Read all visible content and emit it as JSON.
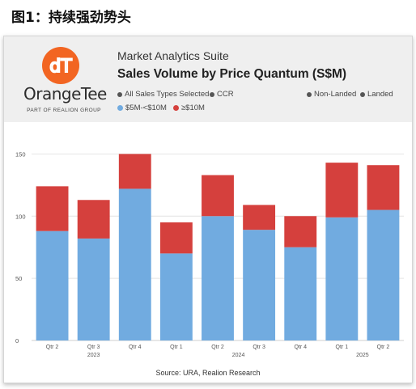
{
  "figure_title": "图1：持续强劲势头",
  "logo": {
    "brand": "OrangeTee",
    "tagline": "PART OF REALION GROUP",
    "mark": "dT"
  },
  "header": {
    "suite": "Market Analytics Suite",
    "title": "Sales Volume by Price Quantum (S$M)"
  },
  "filters": [
    "All Sales Types Selected",
    "CCR",
    "Non-Landed",
    "Landed"
  ],
  "source": "Source: URA, Realion Research",
  "colors": {
    "low_band": "#71abe0",
    "high_band": "#d5403d",
    "logo": "#f26522"
  },
  "chart_data": {
    "type": "bar",
    "stacked": true,
    "categories": [
      "Qtr 2",
      "Qtr 3",
      "Qtr 4",
      "Qtr 1",
      "Qtr 2",
      "Qtr 3",
      "Qtr 4",
      "Qtr 1",
      "Qtr 2"
    ],
    "year_labels": [
      {
        "label": "2023",
        "from": 0,
        "to": 2
      },
      {
        "label": "2024",
        "from": 3,
        "to": 6
      },
      {
        "label": "2025",
        "from": 7,
        "to": 8
      }
    ],
    "series": [
      {
        "name": "$5M-<$10M",
        "color": "#71abe0",
        "values": [
          88,
          82,
          122,
          70,
          100,
          89,
          75,
          99,
          105
        ]
      },
      {
        "name": "≥$10M",
        "color": "#d5403d",
        "values": [
          36,
          31,
          28,
          25,
          33,
          20,
          25,
          44,
          36
        ]
      }
    ],
    "ylim": [
      0,
      160
    ],
    "yticks": [
      0,
      50,
      100,
      150
    ],
    "grid": true,
    "legend_position": "top-left"
  }
}
